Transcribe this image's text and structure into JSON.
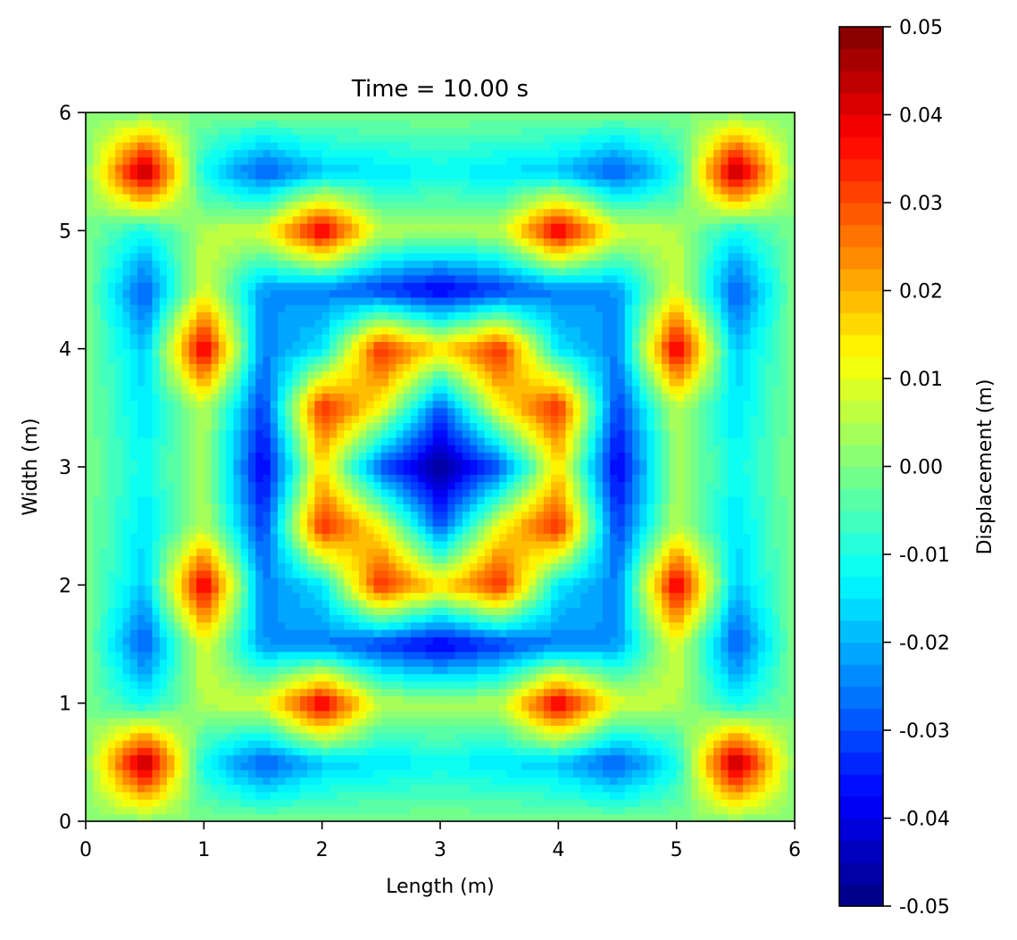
{
  "chart_data": {
    "type": "heatmap",
    "title": "Time = 10.00 s",
    "xlabel": "Length (m)",
    "ylabel": "Width (m)",
    "xlim": [
      0,
      6
    ],
    "ylim": [
      0,
      6
    ],
    "x_ticks": [
      0,
      1,
      2,
      3,
      4,
      5,
      6
    ],
    "y_ticks": [
      0,
      1,
      2,
      3,
      4,
      5,
      6
    ],
    "x_tick_labels": [
      "0",
      "1",
      "2",
      "3",
      "4",
      "5",
      "6"
    ],
    "y_tick_labels": [
      "0",
      "1",
      "2",
      "3",
      "4",
      "5",
      "6"
    ],
    "grid": false,
    "colormap": "jet",
    "colorbar": {
      "label": "Displacement (m)",
      "range": [
        -0.05,
        0.05
      ],
      "ticks": [
        0.05,
        0.04,
        0.03,
        0.02,
        0.01,
        0.0,
        -0.01,
        -0.02,
        -0.03,
        -0.04,
        -0.05
      ],
      "tick_labels": [
        "0.05",
        "0.04",
        "0.03",
        "0.02",
        "0.01",
        "0.00",
        "-0.01",
        "-0.02",
        "-0.03",
        "-0.04",
        "-0.05"
      ],
      "levels": 40,
      "placement": "right"
    },
    "grid_x": [
      0,
      0.5,
      1,
      1.5,
      2,
      2.5,
      3,
      3.5,
      4,
      4.5,
      5,
      5.5,
      6
    ],
    "grid_y": [
      0,
      0.5,
      1,
      1.5,
      2,
      2.5,
      3,
      3.5,
      4,
      4.5,
      5,
      5.5,
      6
    ],
    "z": [
      [
        0,
        0,
        0,
        0,
        0,
        0,
        0,
        0,
        0,
        0,
        0,
        0,
        0
      ],
      [
        0,
        0.048,
        -0.012,
        -0.03,
        -0.018,
        -0.015,
        -0.012,
        -0.015,
        -0.018,
        -0.03,
        -0.012,
        0.048,
        0
      ],
      [
        0,
        -0.012,
        0.005,
        0.01,
        0.042,
        0.005,
        0.005,
        0.005,
        0.042,
        0.01,
        0.005,
        -0.012,
        0
      ],
      [
        0,
        -0.03,
        0.01,
        -0.022,
        -0.025,
        -0.032,
        -0.04,
        -0.032,
        -0.025,
        -0.022,
        0.01,
        -0.03,
        0
      ],
      [
        0,
        -0.018,
        0.042,
        -0.025,
        -0.015,
        0.035,
        0.015,
        0.035,
        -0.015,
        -0.025,
        0.042,
        -0.018,
        0
      ],
      [
        0,
        -0.015,
        0.005,
        -0.032,
        0.035,
        0.012,
        -0.03,
        0.012,
        0.035,
        -0.032,
        0.005,
        -0.015,
        0
      ],
      [
        0,
        -0.012,
        0.005,
        -0.04,
        0.015,
        -0.03,
        -0.048,
        -0.03,
        0.015,
        -0.04,
        0.005,
        -0.012,
        0
      ],
      [
        0,
        -0.015,
        0.005,
        -0.032,
        0.035,
        0.012,
        -0.03,
        0.012,
        0.035,
        -0.032,
        0.005,
        -0.015,
        0
      ],
      [
        0,
        -0.018,
        0.042,
        -0.025,
        -0.015,
        0.035,
        0.015,
        0.035,
        -0.015,
        -0.025,
        0.042,
        -0.018,
        0
      ],
      [
        0,
        -0.03,
        0.01,
        -0.022,
        -0.025,
        -0.032,
        -0.04,
        -0.032,
        -0.025,
        -0.022,
        0.01,
        -0.03,
        0
      ],
      [
        0,
        -0.012,
        0.005,
        0.01,
        0.042,
        0.005,
        0.005,
        0.005,
        0.042,
        0.01,
        0.005,
        -0.012,
        0
      ],
      [
        0,
        0.048,
        -0.012,
        -0.03,
        -0.018,
        -0.015,
        -0.012,
        -0.015,
        -0.018,
        -0.03,
        -0.012,
        0.048,
        0
      ],
      [
        0,
        0,
        0,
        0,
        0,
        0,
        0,
        0,
        0,
        0,
        0,
        0,
        0
      ]
    ]
  }
}
